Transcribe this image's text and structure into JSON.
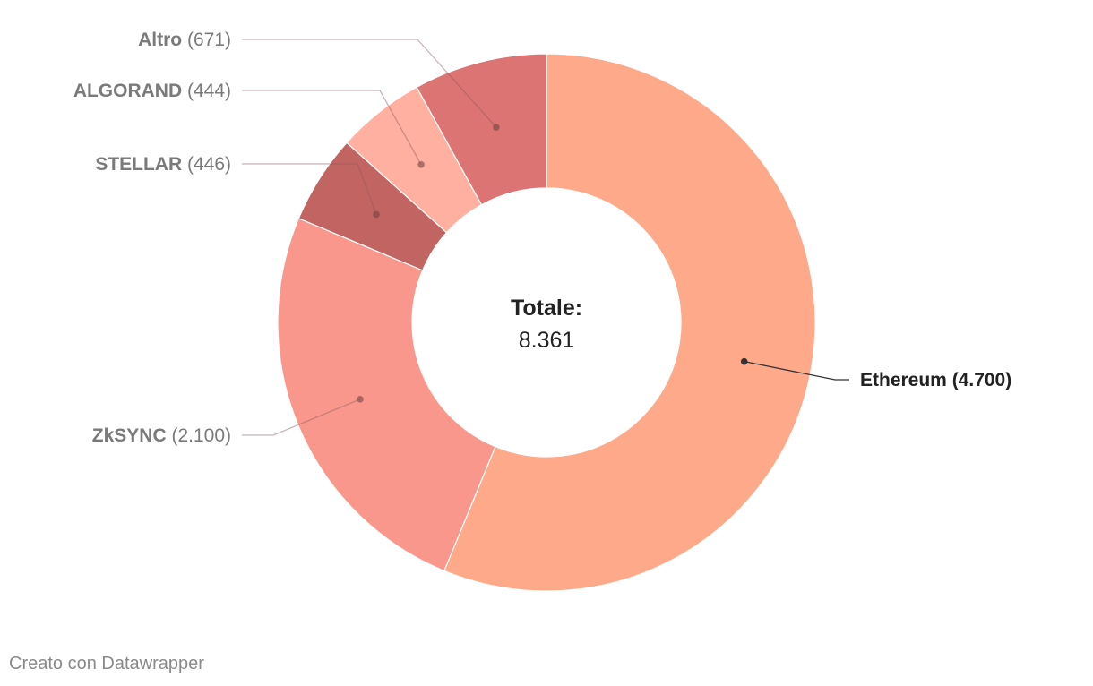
{
  "chart_data": {
    "type": "pie",
    "variant": "donut",
    "title": "",
    "center_label": {
      "title": "Totale:",
      "value": "8.361"
    },
    "slices": [
      {
        "name": "Ethereum",
        "value": 4700,
        "value_label": "4.700",
        "color": "#fea98a",
        "label_side": "right",
        "highlight": true
      },
      {
        "name": "ZkSYNC",
        "value": 2100,
        "value_label": "2.100",
        "color": "#f9978c",
        "label_side": "left"
      },
      {
        "name": "STELLAR",
        "value": 446,
        "value_label": "446",
        "color": "#c16462",
        "label_side": "left"
      },
      {
        "name": "ALGORAND",
        "value": 444,
        "value_label": "444",
        "color": "#ffb0a0",
        "label_side": "left"
      },
      {
        "name": "Altro",
        "value": 671,
        "value_label": "671",
        "color": "#db7472",
        "label_side": "left"
      }
    ]
  },
  "footer": {
    "credit": "Creato con Datawrapper"
  }
}
